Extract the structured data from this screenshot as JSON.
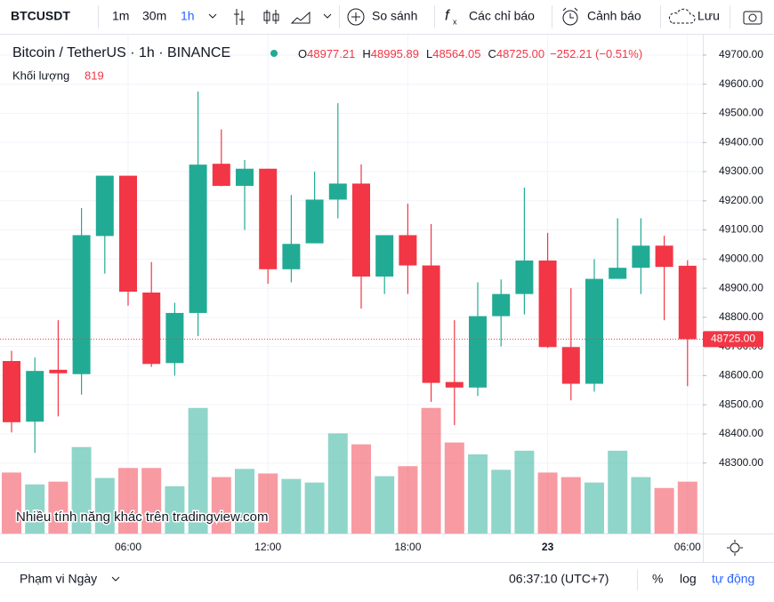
{
  "toolbar": {
    "symbol": "BTCUSDT",
    "intervals": [
      "1m",
      "30m",
      "1h"
    ],
    "compare": "So sánh",
    "indicators": "Các chỉ báo",
    "alerts": "Cảnh báo",
    "save": "Lưu"
  },
  "legend": {
    "title": "Bitcoin / TetherUS · 1h · BINANCE",
    "ohlc": [
      {
        "key": "O",
        "value": "48977.21"
      },
      {
        "key": "H",
        "value": "48995.89"
      },
      {
        "key": "L",
        "value": "48564.05"
      },
      {
        "key": "C",
        "value": "48725.00"
      }
    ],
    "change": "−252.21 (−0.51%)",
    "volume_label": "Khối lượng",
    "volume_value": "819"
  },
  "watermark": "Nhiều tính năng khác trên tradingview.com",
  "footer": {
    "range": "Phạm vi Ngày",
    "clock": "06:37:10 (UTC+7)",
    "percent": "%",
    "log": "log",
    "auto": "tự động"
  },
  "chart_data": {
    "type": "candlestick",
    "categories": [
      null,
      null,
      null,
      null,
      null,
      "06:00",
      null,
      null,
      null,
      null,
      null,
      "12:00",
      null,
      null,
      null,
      null,
      null,
      "18:00",
      null,
      null,
      null,
      null,
      null,
      "23",
      null,
      null,
      null,
      null,
      null,
      "06:00"
    ],
    "open": [
      48650,
      48442,
      48620,
      48605,
      49079,
      49286,
      48885,
      48643,
      48815,
      49327,
      49251,
      49310,
      48965,
      49054,
      49204,
      49259,
      48940,
      49082,
      48978,
      48578,
      48559,
      48804,
      48880,
      48995,
      48698,
      48572,
      48932,
      48970,
      49046,
      48977
    ],
    "high": [
      48685,
      48662,
      48790,
      49175,
      49286,
      49286,
      48990,
      48850,
      49575,
      49445,
      49340,
      49310,
      49220,
      49300,
      49535,
      49325,
      49082,
      49190,
      49120,
      48790,
      48920,
      48930,
      49245,
      49090,
      48900,
      49000,
      49140,
      49140,
      49080,
      48996
    ],
    "low": [
      48405,
      48335,
      48460,
      48535,
      48950,
      48840,
      48630,
      48600,
      48735,
      49250,
      49100,
      48915,
      48920,
      49054,
      49140,
      48830,
      48880,
      48880,
      48510,
      48430,
      48530,
      48700,
      48810,
      48695,
      48515,
      48545,
      48932,
      48880,
      48790,
      48564
    ],
    "close": [
      48440,
      48616,
      48608,
      49082,
      49286,
      48888,
      48640,
      48815,
      49324,
      49251,
      49310,
      48965,
      49052,
      49204,
      49259,
      48940,
      49082,
      48978,
      48575,
      48559,
      48804,
      48880,
      48995,
      48698,
      48572,
      48932,
      48970,
      49046,
      48973,
      48725
    ],
    "volume": [
      963,
      776,
      819,
      1365,
      877,
      1035,
      1035,
      747,
      1983,
      891,
      1020,
      948,
      862,
      805,
      1581,
      1408,
      905,
      1063,
      1983,
      1437,
      1250,
      1006,
      1308,
      963,
      891,
      805,
      1308,
      891,
      719,
      819
    ],
    "volume_lim": [
      0,
      7875
    ],
    "up_color": "#22ab94",
    "down_color": "#f23645",
    "ylim": [
      48058,
      49770
    ],
    "yticks": [
      {
        "value": 48300,
        "label": "48300.00"
      },
      {
        "value": 48400,
        "label": "48400.00"
      },
      {
        "value": 48500,
        "label": "48500.00"
      },
      {
        "value": 48600,
        "label": "48600.00"
      },
      {
        "value": 48700,
        "label": "48700.00"
      },
      {
        "value": 48800,
        "label": "48800.00"
      },
      {
        "value": 48900,
        "label": "48900.00"
      },
      {
        "value": 49000,
        "label": "49000.00"
      },
      {
        "value": 49100,
        "label": "49100.00"
      },
      {
        "value": 49200,
        "label": "49200.00"
      },
      {
        "value": 49300,
        "label": "49300.00"
      },
      {
        "value": 49400,
        "label": "49400.00"
      },
      {
        "value": 49500,
        "label": "49500.00"
      },
      {
        "value": 49600,
        "label": "49600.00"
      },
      {
        "value": 49700,
        "label": "49700.00"
      }
    ],
    "last_price": {
      "value": 48725,
      "label": "48725.00"
    },
    "grid": true
  }
}
